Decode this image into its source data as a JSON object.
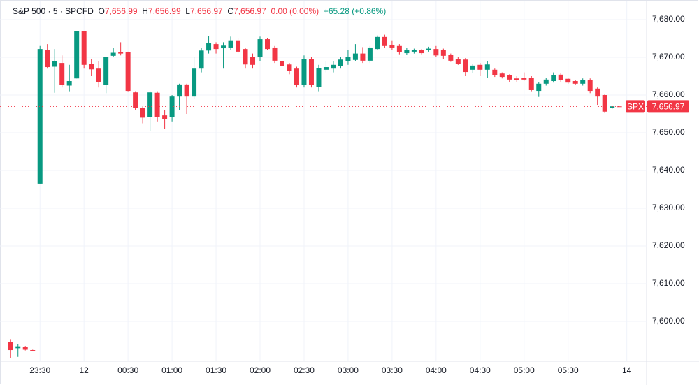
{
  "chart_data": {
    "type": "candlestick",
    "header": {
      "symbol": "S&P 500 · 5 · SPCFD",
      "o_label": "O",
      "o_value": "7,656.99",
      "h_label": "H",
      "h_value": "7,656.99",
      "l_label": "L",
      "l_value": "7,656.97",
      "c_label": "C",
      "c_value": "7,656.97",
      "change": "0.00 (0.00%)",
      "day_change": "+65.28 (+0.86%)"
    },
    "up_color": "#089981",
    "down_color": "#f23645",
    "x": [
      -4,
      -3,
      -2,
      -1,
      0,
      1,
      2,
      3,
      4,
      5,
      6,
      7,
      8,
      9,
      10,
      11,
      12,
      13,
      14,
      15,
      16,
      17,
      18,
      19,
      20,
      21,
      22,
      23,
      24,
      25,
      26,
      27,
      28,
      29,
      30,
      31,
      32,
      33,
      34,
      35,
      36,
      37,
      38,
      39,
      40,
      41,
      42,
      43,
      44,
      45,
      46,
      47,
      48,
      49,
      50,
      51,
      52,
      53,
      54,
      55,
      56,
      57,
      58,
      59,
      60,
      61,
      62,
      63,
      64,
      65,
      66,
      67,
      68,
      69,
      70,
      71,
      72,
      73,
      74,
      75,
      76,
      77,
      78,
      79
    ],
    "open": [
      7594.6,
      7592.9,
      7593.2,
      7592.4,
      7636.5,
      7672,
      7667.5,
      7668.5,
      7662.5,
      7664.4,
      7676.9,
      7668.2,
      7667,
      7662.6,
      7670.4,
      7671.4,
      7671.3,
      7660.7,
      7656.5,
      7654.1,
      7660.6,
      7654.6,
      7654.1,
      7659.6,
      7662.8,
      7659.6,
      7667,
      7671.8,
      7673.5,
      7672.4,
      7672.6,
      7674.5,
      7672.2,
      7670,
      7670,
      7674.8,
      7672.6,
      7669,
      7668.1,
      7667,
      7662.6,
      7669.6,
      7662.1,
      7666.7,
      7667,
      7667.6,
      7668.9,
      7669.3,
      7671,
      7669.1,
      7672.2,
      7675.4,
      7673.3,
      7673,
      7671.1,
      7671.5,
      7671.9,
      7671.9,
      7672.2,
      7672,
      7670.6,
      7669.5,
      7669.4,
      7666.7,
      7668,
      7666.7,
      7666.7,
      7665.7,
      7665.2,
      7664.4,
      7664.6,
      7664.6,
      7661.1,
      7663,
      7663.7,
      7665.4,
      7664.3,
      7663.7,
      7663,
      7663.9,
      7661.7,
      7660,
      7656.5,
      7656.99
    ],
    "high": [
      7595.3,
      7594,
      7593.5,
      7592.5,
      7673,
      7673.5,
      7672.2,
      7670.5,
      7668,
      7676.9,
      7677,
      7669.5,
      7669,
      7670,
      7672.5,
      7674,
      7671.5,
      7661,
      7657,
      7661,
      7661,
      7656,
      7660,
      7663,
      7663,
      7670,
      7672.5,
      7675.6,
      7674,
      7674,
      7675.5,
      7675,
      7672.5,
      7671,
      7675.5,
      7675,
      7673,
      7669.5,
      7668.5,
      7667.5,
      7670.5,
      7670,
      7668,
      7669,
      7669,
      7670,
      7672,
      7673.5,
      7672.7,
      7673,
      7675.8,
      7676,
      7674.5,
      7673.5,
      7672.5,
      7672.3,
      7672.2,
      7672.8,
      7673,
      7672.3,
      7671,
      7670,
      7669.8,
      7668.3,
      7668.5,
      7669,
      7667,
      7666,
      7665.5,
      7665,
      7666,
      7665,
      7663.5,
      7664.5,
      7666,
      7665.8,
      7664.6,
      7664,
      7664.4,
      7664.4,
      7662,
      7660.2,
      7657.2,
      7656.99
    ],
    "low": [
      7590.2,
      7590.6,
      7592.3,
      7592.2,
      7636.5,
      7667,
      7660.6,
      7662,
      7661,
      7664.4,
      7667,
      7665,
      7662,
      7660.5,
      7670,
      7670.5,
      7661,
      7656,
      7652.5,
      7650.4,
      7653,
      7651,
      7653,
      7656,
      7655,
      7659,
      7666,
      7671,
      7671,
      7667,
      7672,
      7671,
      7667,
      7667,
      7669,
      7672,
      7668.5,
      7667,
      7665.5,
      7662,
      7662,
      7662,
      7661,
      7666,
      7666,
      7667,
      7668,
      7669,
      7668.5,
      7668.5,
      7672,
      7672.5,
      7672,
      7670.8,
      7670.7,
      7671,
      7670.8,
      7671.5,
      7670,
      7669.5,
      7668.8,
      7668,
      7665,
      7665.8,
      7665,
      7664.5,
      7664.8,
      7664.4,
      7663.5,
      7663.5,
      7663.8,
      7661,
      7659.5,
      7662.5,
      7663.3,
      7663.5,
      7663,
      7662.8,
      7662.5,
      7660.5,
      7657.4,
      7655.2,
      7656.3,
      7656.97
    ],
    "close": [
      7592.4,
      7593.4,
      7592.5,
      7592.2,
      7672.2,
      7667.4,
      7668.9,
      7662.6,
      7663.7,
      7676.9,
      7668,
      7666.8,
      7663.5,
      7670,
      7671.2,
      7671,
      7661.1,
      7656.5,
      7654,
      7660.7,
      7654.1,
      7653.7,
      7659.6,
      7662.8,
      7659.6,
      7667,
      7671.8,
      7673.7,
      7672.2,
      7673.1,
      7674.5,
      7671.5,
      7668.1,
      7668,
      7674.8,
      7672.2,
      7669.1,
      7667.6,
      7666.3,
      7662.6,
      7669.6,
      7662.6,
      7667.2,
      7667.4,
      7668,
      7669.4,
      7670,
      7671,
      7669.1,
      7672.6,
      7675.4,
      7673,
      7672.6,
      7671.3,
      7672,
      7672,
      7671.1,
      7672.3,
      7670.5,
      7670.4,
      7669.1,
      7668.3,
      7666.1,
      7667.8,
      7666.7,
      7668.1,
      7665.2,
      7664.8,
      7664.1,
      7663.9,
      7664.1,
      7661.3,
      7663,
      7664.1,
      7665.2,
      7663.9,
      7663.3,
      7663,
      7663.9,
      7661.1,
      7659.6,
      7655.6,
      7657,
      7656.97
    ],
    "xlim": [
      -4.5,
      82.7
    ],
    "ylim": [
      7590,
      7685
    ],
    "xticks": [
      {
        "value": 0,
        "label": "23:30"
      },
      {
        "value": 6,
        "label": "12"
      },
      {
        "value": 12,
        "label": "00:30"
      },
      {
        "value": 18,
        "label": "01:00"
      },
      {
        "value": 24,
        "label": "01:30"
      },
      {
        "value": 30,
        "label": "02:00"
      },
      {
        "value": 36,
        "label": "02:30"
      },
      {
        "value": 42,
        "label": "03:00"
      },
      {
        "value": 48,
        "label": "03:30"
      },
      {
        "value": 54,
        "label": "04:00"
      },
      {
        "value": 60,
        "label": "04:30"
      },
      {
        "value": 66,
        "label": "05:00"
      },
      {
        "value": 72,
        "label": "05:30"
      },
      {
        "value": 80,
        "label": "14"
      }
    ],
    "yticks": [
      {
        "value": 7600,
        "label": "7,600.00"
      },
      {
        "value": 7610,
        "label": "7,610.00"
      },
      {
        "value": 7620,
        "label": "7,620.00"
      },
      {
        "value": 7630,
        "label": "7,630.00"
      },
      {
        "value": 7640,
        "label": "7,640.00"
      },
      {
        "value": 7650,
        "label": "7,650.00"
      },
      {
        "value": 7660,
        "label": "7,660.00"
      },
      {
        "value": 7670,
        "label": "7,670.00"
      },
      {
        "value": 7680,
        "label": "7,680.00"
      }
    ],
    "grid": true,
    "last_price": {
      "name": "SPX",
      "value": 7656.97,
      "label": "7,656.97"
    }
  }
}
